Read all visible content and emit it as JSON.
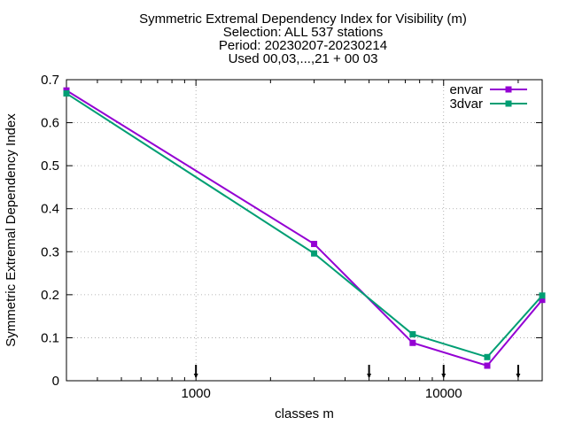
{
  "chart_data": {
    "type": "line",
    "title_lines": [
      "Symmetric Extremal Dependency Index  for Visibility (m)",
      "Selection: ALL    537 stations",
      "Period: 20230207-20230214",
      "Used 00,03,...,21 + 00 03"
    ],
    "xlabel": "classes m",
    "ylabel": "Symmetric Extremal Dependency Index",
    "x_scale": "log",
    "xlim": [
      300,
      25000
    ],
    "ylim": [
      0,
      0.7
    ],
    "x_ticks": [
      1000,
      10000
    ],
    "x_tick_labels": [
      "1000",
      "10000"
    ],
    "y_ticks": [
      0,
      0.1,
      0.2,
      0.3,
      0.4,
      0.5,
      0.6,
      0.7
    ],
    "y_tick_labels": [
      "0",
      "0.1",
      "0.2",
      "0.3",
      "0.4",
      "0.5",
      "0.6",
      "0.7"
    ],
    "grid": true,
    "legend_position": "top-right",
    "x": [
      300,
      3000,
      7500,
      15000,
      25000
    ],
    "series": [
      {
        "name": "envar",
        "color": "#9400d3",
        "values": [
          0.675,
          0.318,
          0.088,
          0.035,
          0.188
        ]
      },
      {
        "name": "3dvar",
        "color": "#009e73",
        "values": [
          0.668,
          0.296,
          0.108,
          0.055,
          0.198
        ]
      }
    ],
    "class_markers": [
      1000,
      5000,
      10000,
      20000
    ]
  }
}
